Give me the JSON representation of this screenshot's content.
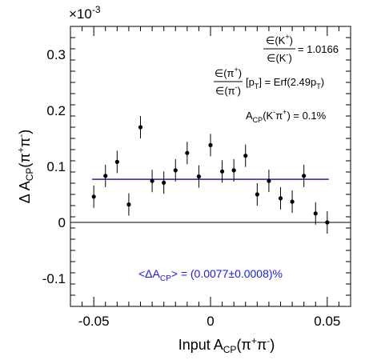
{
  "chart_data": {
    "type": "scatter",
    "xlabel": {
      "pre": "Input A",
      "sub": "CP",
      "post": "(π",
      "sup1": "+",
      "mid": "π",
      "sup2": "-",
      "end": ")"
    },
    "ylabel": {
      "pre": "Δ A",
      "sub": "CP",
      "post": "(π",
      "sup1": "+",
      "mid": "π",
      "sup2": "-",
      "end": ")"
    },
    "y_multiplier": {
      "base": "×10",
      "exp": "-3"
    },
    "xlim": [
      -0.06,
      0.06
    ],
    "ylim": [
      -0.15,
      0.35
    ],
    "x_ticks": [
      -0.05,
      0,
      0.05
    ],
    "x_tick_labels": [
      "-0.05",
      "0",
      "0.05"
    ],
    "y_ticks": [
      -0.1,
      0,
      0.1,
      0.2,
      0.3
    ],
    "y_tick_labels": [
      "-0.1",
      "0",
      "0.1",
      "0.2",
      "0.3"
    ],
    "points": [
      {
        "x": -0.05,
        "y": 0.046,
        "err": 0.02
      },
      {
        "x": -0.045,
        "y": 0.083,
        "err": 0.02
      },
      {
        "x": -0.04,
        "y": 0.108,
        "err": 0.02
      },
      {
        "x": -0.035,
        "y": 0.032,
        "err": 0.02
      },
      {
        "x": -0.03,
        "y": 0.17,
        "err": 0.02
      },
      {
        "x": -0.025,
        "y": 0.074,
        "err": 0.02
      },
      {
        "x": -0.02,
        "y": 0.071,
        "err": 0.02
      },
      {
        "x": -0.015,
        "y": 0.093,
        "err": 0.02
      },
      {
        "x": -0.01,
        "y": 0.124,
        "err": 0.02
      },
      {
        "x": -0.005,
        "y": 0.082,
        "err": 0.02
      },
      {
        "x": 0.0,
        "y": 0.138,
        "err": 0.02
      },
      {
        "x": 0.005,
        "y": 0.091,
        "err": 0.02
      },
      {
        "x": 0.01,
        "y": 0.093,
        "err": 0.02
      },
      {
        "x": 0.015,
        "y": 0.119,
        "err": 0.02
      },
      {
        "x": 0.02,
        "y": 0.05,
        "err": 0.02
      },
      {
        "x": 0.025,
        "y": 0.074,
        "err": 0.02
      },
      {
        "x": 0.03,
        "y": 0.043,
        "err": 0.02
      },
      {
        "x": 0.035,
        "y": 0.037,
        "err": 0.02
      },
      {
        "x": 0.04,
        "y": 0.083,
        "err": 0.02
      },
      {
        "x": 0.045,
        "y": 0.016,
        "err": 0.02
      },
      {
        "x": 0.05,
        "y": 0.0,
        "err": 0.02
      }
    ],
    "fit_line": {
      "y": 0.077,
      "x_range": [
        -0.05,
        0.05
      ],
      "color": "#2222aa"
    },
    "fit_label": {
      "text": "<ΔA",
      "sub": "CP",
      "rest": "> = (0.0077±0.0008)%",
      "color": "#1a1aff"
    },
    "annotations": {
      "eff_k_num": "∈(K",
      "eff_k_num_sup": "+",
      "eff_k_num_end": ")",
      "eff_k_den": "∈(K",
      "eff_k_den_sup": "-",
      "eff_k_den_end": ")",
      "eff_k_value": "= 1.0166",
      "eff_pi_num": "∈(π",
      "eff_pi_num_sup": "+",
      "eff_pi_num_end": ")",
      "eff_pi_den": "∈(π",
      "eff_pi_den_sup": "-",
      "eff_pi_den_end": ")",
      "eff_pi_value_pre": "[p",
      "eff_pi_value_sub": "T",
      "eff_pi_value_mid": "] = Erf(2.49p",
      "eff_pi_value_sub2": "T",
      "eff_pi_value_end": ")",
      "acp_k_pre": "A",
      "acp_k_sub": "CP",
      "acp_k_mid": "(K",
      "acp_k_sup1": "-",
      "acp_k_mid2": "π",
      "acp_k_sup2": "+",
      "acp_k_end": ") = 0.1%"
    }
  }
}
